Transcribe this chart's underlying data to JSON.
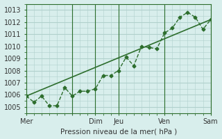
{
  "title": "",
  "xlabel": "Pression niveau de la mer( hPa )",
  "ylabel": "",
  "ylim": [
    1004.5,
    1013.5
  ],
  "xlim": [
    0,
    48
  ],
  "yticks": [
    1005,
    1006,
    1007,
    1008,
    1009,
    1010,
    1011,
    1012,
    1013
  ],
  "xtick_positions": [
    0,
    12,
    18,
    24,
    36,
    48
  ],
  "xtick_labels": [
    "Mer",
    "",
    "Dim",
    "Jeu",
    "Ven",
    "Sam"
  ],
  "bg_color": "#d8eeec",
  "grid_color": "#b0d0cc",
  "line_color": "#2d6e2d",
  "trend_color": "#2d6e2d",
  "noisy_x": [
    0,
    2,
    4,
    6,
    8,
    10,
    12,
    14,
    16,
    18,
    20,
    22,
    24,
    26,
    28,
    30,
    32,
    34,
    36,
    38,
    40,
    42,
    44,
    46,
    48
  ],
  "noisy_y": [
    1005.9,
    1005.4,
    1005.9,
    1005.1,
    1005.1,
    1006.6,
    1005.9,
    1006.3,
    1006.3,
    1006.5,
    1007.6,
    1007.6,
    1008.0,
    1009.1,
    1008.4,
    1010.0,
    1009.9,
    1009.8,
    1011.1,
    1011.5,
    1012.4,
    1012.8,
    1012.4,
    1011.4,
    1012.2
  ],
  "trend_x": [
    0,
    48
  ],
  "trend_y": [
    1005.9,
    1012.2
  ],
  "vline_positions": [
    12,
    18,
    24,
    36,
    48
  ]
}
